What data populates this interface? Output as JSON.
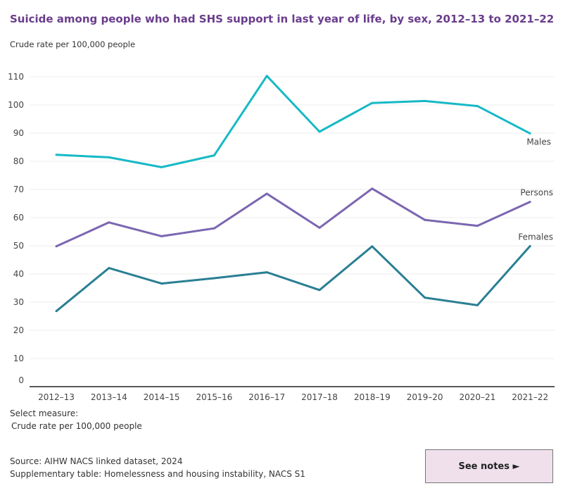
{
  "chart_data": {
    "type": "line",
    "title": "Suicide among people who had SHS support in last year of life, by sex, 2012–13 to 2021–22",
    "ylabel": "Crude rate per 100,000 people",
    "xlabel": "",
    "ylim": [
      0,
      110
    ],
    "yticks": [
      0,
      10,
      20,
      30,
      40,
      50,
      60,
      70,
      80,
      90,
      100,
      110
    ],
    "grid": true,
    "legend": "direct labels at line ends",
    "categories": [
      "2012–13",
      "2013–14",
      "2014–15",
      "2015–16",
      "2016–17",
      "2017–18",
      "2018–19",
      "2019–20",
      "2020–21",
      "2021–22"
    ],
    "series": [
      {
        "name": "Males",
        "color": "#17b9c6",
        "values": [
          82.3,
          81.4,
          77.9,
          82.1,
          110.3,
          90.5,
          100.7,
          101.4,
          99.6,
          89.9
        ]
      },
      {
        "name": "Persons",
        "color": "#7b66b1",
        "values": [
          49.8,
          58.3,
          53.4,
          56.2,
          68.5,
          56.4,
          70.3,
          59.2,
          57.1,
          65.6
        ]
      },
      {
        "name": "Females",
        "color": "#2a7f93",
        "values": [
          26.8,
          42.1,
          36.6,
          38.5,
          40.6,
          34.3,
          49.8,
          31.6,
          28.9,
          49.9
        ]
      }
    ]
  },
  "controls": {
    "measure_label": "Select measure:",
    "measure_value": "Crude rate per 100,000 people",
    "notes_button": "See notes ►"
  },
  "footer": {
    "source": "Source: AIHW NACS linked dataset, 2024",
    "supplementary": "Supplementary table: Homelessness and housing instability, NACS S1"
  }
}
